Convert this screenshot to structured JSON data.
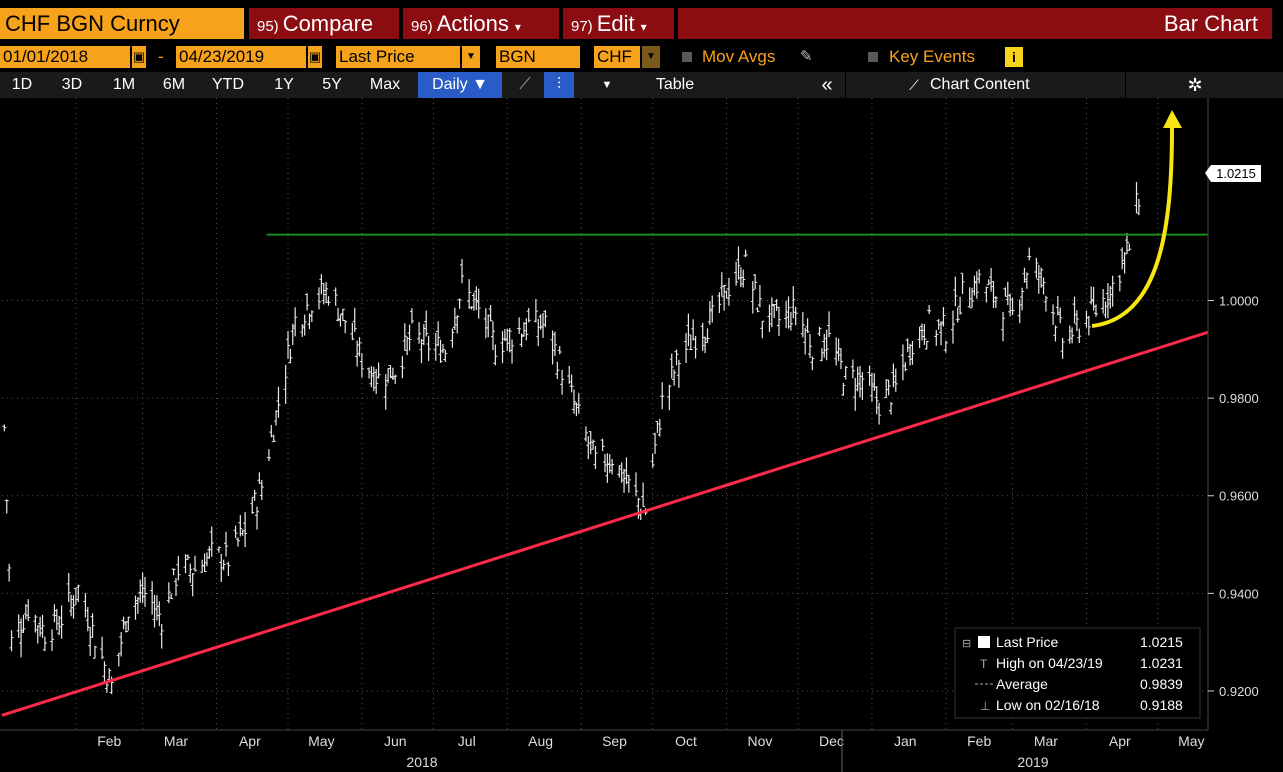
{
  "header": {
    "ticker": "CHF BGN Curncy",
    "menus": [
      {
        "num": "95)",
        "label": "Compare",
        "caret": ""
      },
      {
        "num": "96)",
        "label": "Actions",
        "caret": "▾"
      },
      {
        "num": "97)",
        "label": "Edit",
        "caret": "▾"
      }
    ],
    "title": "Bar Chart"
  },
  "params": {
    "start_date": "01/01/2018",
    "dash": "-",
    "end_date": "04/23/2019",
    "field": "Last Price",
    "source": "BGN",
    "currency": "CHF",
    "mov_avgs": "Mov Avgs",
    "key_events": "Key Events",
    "info": "i"
  },
  "toolbar": {
    "ranges": [
      "1D",
      "3D",
      "1M",
      "6M",
      "YTD",
      "1Y",
      "5Y",
      "Max"
    ],
    "period": "Daily ▼",
    "table": "Table",
    "collapse": "«",
    "chart_content": "Chart Content"
  },
  "colors": {
    "accent": "#f7a21b",
    "menu": "#8b0d12",
    "trend_red": "#ff2a4a",
    "resistance_green": "#1f8a1f",
    "arrow_yellow": "#f5e614"
  },
  "chart_data": {
    "type": "ohlc",
    "ylim": [
      0.912,
      1.0415
    ],
    "yticks": [
      "1.0000",
      "0.9800",
      "0.9600",
      "0.9400",
      "0.9200"
    ],
    "ytick_values": [
      1.0,
      0.98,
      0.96,
      0.94,
      0.92
    ],
    "last_price_label": "1.0215",
    "xticks": [
      "Feb",
      "Mar",
      "Apr",
      "May",
      "Jun",
      "Jul",
      "Aug",
      "Sep",
      "Oct",
      "Nov",
      "Dec",
      "Jan",
      "Feb",
      "Mar",
      "Apr",
      "May"
    ],
    "year_labels": [
      "2018",
      "2019"
    ],
    "series_points": [
      [
        "2018-01-02",
        0.974
      ],
      [
        "2018-01-05",
        0.93
      ],
      [
        "2018-01-12",
        0.937
      ],
      [
        "2018-01-19",
        0.932
      ],
      [
        "2018-01-26",
        0.935
      ],
      [
        "2018-02-02",
        0.941
      ],
      [
        "2018-02-09",
        0.931
      ],
      [
        "2018-02-16",
        0.921
      ],
      [
        "2018-02-23",
        0.937
      ],
      [
        "2018-03-02",
        0.94
      ],
      [
        "2018-03-09",
        0.935
      ],
      [
        "2018-03-16",
        0.945
      ],
      [
        "2018-03-23",
        0.945
      ],
      [
        "2018-03-30",
        0.948
      ],
      [
        "2018-04-06",
        0.947
      ],
      [
        "2018-04-13",
        0.953
      ],
      [
        "2018-04-20",
        0.962
      ],
      [
        "2018-04-27",
        0.979
      ],
      [
        "2018-05-04",
        0.996
      ],
      [
        "2018-05-11",
        1.0
      ],
      [
        "2018-05-18",
        1.002
      ],
      [
        "2018-05-25",
        0.996
      ],
      [
        "2018-06-01",
        0.988
      ],
      [
        "2018-06-08",
        0.984
      ],
      [
        "2018-06-15",
        0.986
      ],
      [
        "2018-06-22",
        0.993
      ],
      [
        "2018-06-29",
        0.991
      ],
      [
        "2018-07-06",
        0.99
      ],
      [
        "2018-07-13",
        1.003
      ],
      [
        "2018-07-20",
        0.998
      ],
      [
        "2018-07-27",
        0.991
      ],
      [
        "2018-08-03",
        0.993
      ],
      [
        "2018-08-10",
        0.995
      ],
      [
        "2018-08-17",
        0.995
      ],
      [
        "2018-08-24",
        0.986
      ],
      [
        "2018-08-31",
        0.976
      ],
      [
        "2018-09-07",
        0.967
      ],
      [
        "2018-09-14",
        0.968
      ],
      [
        "2018-09-21",
        0.962
      ],
      [
        "2018-09-28",
        0.957
      ],
      [
        "2018-10-05",
        0.979
      ],
      [
        "2018-10-12",
        0.988
      ],
      [
        "2018-10-19",
        0.993
      ],
      [
        "2018-10-26",
        0.996
      ],
      [
        "2018-11-02",
        1.003
      ],
      [
        "2018-11-09",
        1.007
      ],
      [
        "2018-11-16",
        0.997
      ],
      [
        "2018-11-23",
        0.996
      ],
      [
        "2018-11-30",
        0.998
      ],
      [
        "2018-12-07",
        0.991
      ],
      [
        "2018-12-14",
        0.992
      ],
      [
        "2018-12-21",
        0.984
      ],
      [
        "2018-12-28",
        0.984
      ],
      [
        "2019-01-04",
        0.979
      ],
      [
        "2019-01-11",
        0.982
      ],
      [
        "2019-01-18",
        0.992
      ],
      [
        "2019-01-25",
        0.995
      ],
      [
        "2019-02-01",
        0.994
      ],
      [
        "2019-02-08",
        1.001
      ],
      [
        "2019-02-15",
        1.004
      ],
      [
        "2019-02-22",
        1.001
      ],
      [
        "2019-03-01",
        0.997
      ],
      [
        "2019-03-08",
        1.008
      ],
      [
        "2019-03-15",
        1.003
      ],
      [
        "2019-03-22",
        0.992
      ],
      [
        "2019-03-29",
        0.995
      ],
      [
        "2019-04-05",
        0.998
      ],
      [
        "2019-04-12",
        1.003
      ],
      [
        "2019-04-19",
        1.011
      ],
      [
        "2019-04-23",
        1.0215
      ]
    ],
    "trendline": [
      [
        "2018-01-01",
        0.915
      ],
      [
        "2019-05-22",
        0.9935
      ]
    ],
    "resistance": {
      "value": 1.0135,
      "from": "2018-04-22",
      "to": "2019-05-22"
    },
    "legend": {
      "rows": [
        {
          "label": "Last Price",
          "value": "1.0215"
        },
        {
          "label": "High on 04/23/19",
          "value": "1.0231"
        },
        {
          "label": "Average",
          "value": "0.9839"
        },
        {
          "label": "Low on 02/16/18",
          "value": "0.9188"
        }
      ]
    },
    "grid": true
  }
}
